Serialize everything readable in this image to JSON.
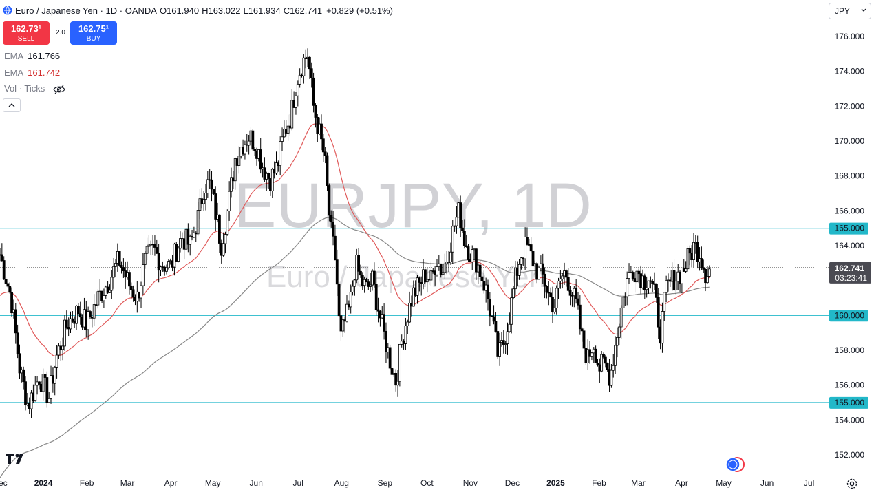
{
  "header": {
    "symbol_title": "Euro / Japanese Yen · 1D · OANDA",
    "open_label": "O",
    "open_value": "161.940",
    "high_label": "H",
    "high_value": "163.022",
    "low_label": "L",
    "low_value": "161.934",
    "close_label": "C",
    "close_value": "162.741",
    "change": "+0.829 (+0.51%)"
  },
  "trade": {
    "sell_price": "162.73¹",
    "sell_label": "SELL",
    "buy_price": "162.75¹",
    "buy_label": "BUY",
    "spread": "2.0"
  },
  "indicators": [
    {
      "name": "EMA",
      "value": "161.766",
      "color": "#131722"
    },
    {
      "name": "EMA",
      "value": "161.742",
      "color": "#d32f2f"
    },
    {
      "name": "Vol · Ticks"
    }
  ],
  "currency_select": {
    "value": "JPY"
  },
  "watermark": {
    "main": "EURJPY, 1D",
    "sub": "Euro / Japanese Yen"
  },
  "icons": {
    "globe": "globe-icon",
    "eye": "eye-off-icon",
    "collapse": "chevron-up-icon",
    "settings": "gear-icon",
    "logo": "tradingview-logo"
  },
  "colors": {
    "up": "#ffffff",
    "down": "#000000",
    "ema_fast": "#e05a5a",
    "ema_slow": "#888888",
    "level": "#22b8c9",
    "last_price_bg": "#4a4a52"
  },
  "chart_data": {
    "type": "candlestick",
    "title": "EURJPY, 1D",
    "ylim": [
      151,
      176.8
    ],
    "y_ticks": [
      "152.000",
      "154.000",
      "156.000",
      "158.000",
      "160.000",
      "162.000",
      "164.000",
      "166.000",
      "168.000",
      "170.000",
      "172.000",
      "174.000",
      "176.000"
    ],
    "y_tick_values": [
      152,
      154,
      156,
      158,
      160,
      162,
      164,
      166,
      168,
      170,
      172,
      174,
      176
    ],
    "x_ticks": [
      "Dec",
      "2024",
      "Feb",
      "Mar",
      "Apr",
      "May",
      "Jun",
      "Jul",
      "Aug",
      "Sep",
      "Oct",
      "Nov",
      "Dec",
      "2025",
      "Feb",
      "Mar",
      "Apr",
      "May",
      "Jun",
      "Jul"
    ],
    "x_tick_days": [
      0,
      31,
      62,
      91,
      122,
      152,
      183,
      213,
      244,
      275,
      305,
      336,
      366,
      397,
      428,
      456,
      487,
      517,
      548,
      578
    ],
    "x_range_days": [
      0,
      590
    ],
    "last_price": {
      "value": 162.741,
      "label": "162.741",
      "countdown": "03:23:41"
    },
    "horizontal_levels": [
      {
        "value": 165.0,
        "label": "165.000"
      },
      {
        "value": 160.0,
        "label": "160.000"
      },
      {
        "value": 155.0,
        "label": "155.000"
      }
    ],
    "close_path": [
      [
        0,
        163.5
      ],
      [
        8,
        161
      ],
      [
        14,
        157
      ],
      [
        20,
        154.8
      ],
      [
        28,
        156.5
      ],
      [
        35,
        155.3
      ],
      [
        40,
        157.5
      ],
      [
        48,
        159.5
      ],
      [
        56,
        160.3
      ],
      [
        62,
        159.5
      ],
      [
        70,
        161
      ],
      [
        78,
        162
      ],
      [
        85,
        163.2
      ],
      [
        92,
        161.8
      ],
      [
        98,
        161
      ],
      [
        104,
        163.2
      ],
      [
        110,
        163.8
      ],
      [
        115,
        163
      ],
      [
        122,
        162.8
      ],
      [
        126,
        163.8
      ],
      [
        130,
        164.5
      ],
      [
        136,
        164
      ],
      [
        142,
        165.8
      ],
      [
        146,
        167.5
      ],
      [
        150,
        167.5
      ],
      [
        155,
        165.5
      ],
      [
        158,
        164
      ],
      [
        163,
        166.2
      ],
      [
        168,
        169
      ],
      [
        173,
        169.8
      ],
      [
        178,
        170.3
      ],
      [
        183,
        169.8
      ],
      [
        188,
        168.5
      ],
      [
        193,
        167.8
      ],
      [
        198,
        168.5
      ],
      [
        203,
        170.5
      ],
      [
        208,
        171.5
      ],
      [
        212,
        173.5
      ],
      [
        216,
        174.5
      ],
      [
        220,
        175
      ],
      [
        224,
        172
      ],
      [
        228,
        170.5
      ],
      [
        232,
        169
      ],
      [
        236,
        165
      ],
      [
        240,
        163
      ],
      [
        243,
        158.5
      ],
      [
        246,
        159.5
      ],
      [
        250,
        160.5
      ],
      [
        254,
        163
      ],
      [
        258,
        162
      ],
      [
        262,
        161.5
      ],
      [
        266,
        162
      ],
      [
        270,
        160.5
      ],
      [
        274,
        159
      ],
      [
        279,
        157.3
      ],
      [
        283,
        156.2
      ],
      [
        287,
        158.5
      ],
      [
        291,
        160
      ],
      [
        295,
        161.2
      ],
      [
        300,
        161.8
      ],
      [
        304,
        162.4
      ],
      [
        308,
        162
      ],
      [
        312,
        163.3
      ],
      [
        316,
        162.5
      ],
      [
        320,
        163.5
      ],
      [
        324,
        165
      ],
      [
        328,
        166
      ],
      [
        332,
        164.3
      ],
      [
        336,
        163.6
      ],
      [
        340,
        163.2
      ],
      [
        344,
        162.3
      ],
      [
        348,
        161.2
      ],
      [
        352,
        159.5
      ],
      [
        356,
        157.6
      ],
      [
        360,
        158.5
      ],
      [
        364,
        160
      ],
      [
        368,
        162
      ],
      [
        372,
        163.5
      ],
      [
        376,
        164
      ],
      [
        380,
        163.3
      ],
      [
        384,
        162.5
      ],
      [
        388,
        162.2
      ],
      [
        392,
        161.2
      ],
      [
        396,
        160.5
      ],
      [
        400,
        162
      ],
      [
        404,
        162.5
      ],
      [
        408,
        161.5
      ],
      [
        412,
        160.5
      ],
      [
        416,
        158.5
      ],
      [
        420,
        157.5
      ],
      [
        424,
        158.5
      ],
      [
        428,
        157
      ],
      [
        432,
        157.2
      ],
      [
        436,
        156.5
      ],
      [
        440,
        158.5
      ],
      [
        444,
        160.5
      ],
      [
        448,
        162
      ],
      [
        452,
        162.7
      ],
      [
        456,
        162.5
      ],
      [
        460,
        162
      ],
      [
        464,
        162.3
      ],
      [
        468,
        161
      ],
      [
        472,
        159
      ],
      [
        476,
        161.5
      ],
      [
        480,
        162
      ],
      [
        484,
        162.3
      ],
      [
        488,
        162.6
      ],
      [
        492,
        163.3
      ],
      [
        496,
        164
      ],
      [
        500,
        163.6
      ],
      [
        504,
        162.5
      ],
      [
        508,
        162.741
      ]
    ],
    "series": [
      {
        "name": "EMA",
        "value": "161.766"
      },
      {
        "name": "EMA",
        "value": "161.742"
      }
    ]
  }
}
